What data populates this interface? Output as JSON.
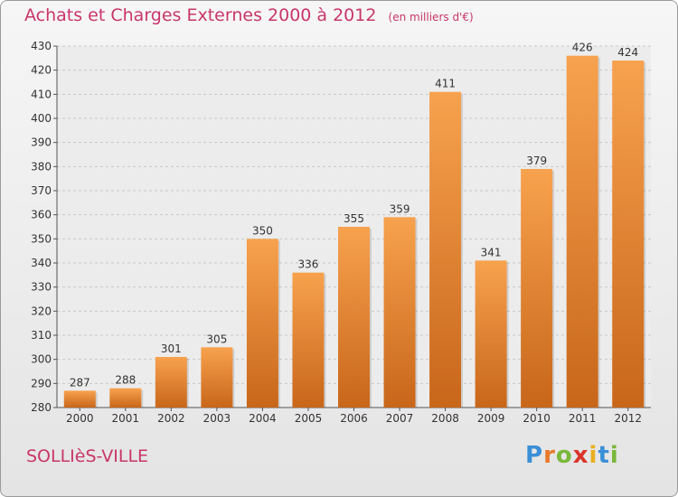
{
  "title": "Achats et Charges Externes 2000 à 2012",
  "subtitle": "(en milliers d'€)",
  "place": "SOLLIèS-VILLE",
  "logo": {
    "letters": [
      "P",
      "r",
      "o",
      "x",
      "i",
      "t",
      "i"
    ],
    "colors": [
      "#3a8fd6",
      "#e8792a",
      "#7ab83b",
      "#d9342b",
      "#e8b020",
      "#3a8fd6",
      "#7ab83b"
    ]
  },
  "colors": {
    "accent": "#c8366a",
    "bar_light": "#f7a24e",
    "bar_dark": "#c8661a"
  },
  "chart_data": {
    "type": "bar",
    "categories": [
      "2000",
      "2001",
      "2002",
      "2003",
      "2004",
      "2005",
      "2006",
      "2007",
      "2008",
      "2009",
      "2010",
      "2011",
      "2012"
    ],
    "values": [
      287,
      288,
      301,
      305,
      350,
      336,
      355,
      359,
      411,
      341,
      379,
      426,
      424
    ],
    "ylim": [
      280,
      430
    ],
    "yticks": [
      280,
      290,
      300,
      310,
      320,
      330,
      340,
      350,
      360,
      370,
      380,
      390,
      400,
      410,
      420,
      430
    ],
    "grid": true
  }
}
